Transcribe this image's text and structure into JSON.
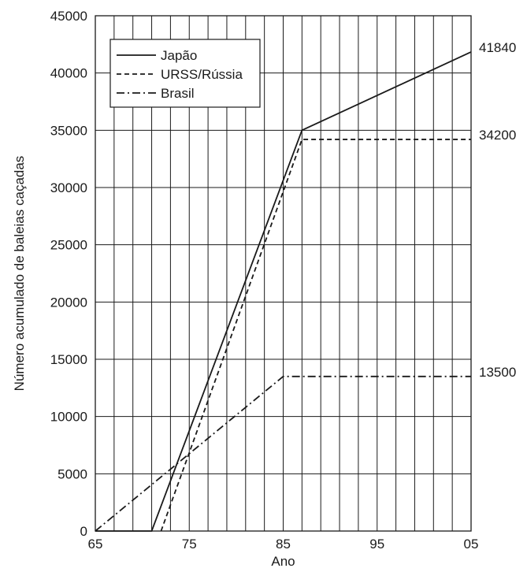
{
  "chart_data": {
    "type": "line",
    "xlabel": "Ano",
    "ylabel": "Número acumulado de baleias caçadas",
    "x_ticks": [
      {
        "value": 1965,
        "label": "65"
      },
      {
        "value": 1975,
        "label": "75"
      },
      {
        "value": 1985,
        "label": "85"
      },
      {
        "value": 1995,
        "label": "95"
      },
      {
        "value": 2005,
        "label": "05"
      }
    ],
    "y_ticks": [
      {
        "value": 0,
        "label": "0"
      },
      {
        "value": 5000,
        "label": "5000"
      },
      {
        "value": 10000,
        "label": "10000"
      },
      {
        "value": 15000,
        "label": "15000"
      },
      {
        "value": 20000,
        "label": "20000"
      },
      {
        "value": 25000,
        "label": "25000"
      },
      {
        "value": 30000,
        "label": "30000"
      },
      {
        "value": 35000,
        "label": "35000"
      },
      {
        "value": 40000,
        "label": "40000"
      },
      {
        "value": 45000,
        "label": "45000"
      }
    ],
    "xlim": [
      1965,
      2005
    ],
    "ylim": [
      0,
      45000
    ],
    "grid": {
      "vertical_every_years": 2,
      "horizontal_every": 5000
    },
    "legend": {
      "placement": "top-left"
    },
    "series": [
      {
        "name": "Japão",
        "style": "solid",
        "color": "#1a1a1a",
        "points": [
          {
            "x": 1965,
            "y": 0
          },
          {
            "x": 1971,
            "y": 0
          },
          {
            "x": 1987,
            "y": 35000
          },
          {
            "x": 2005,
            "y": 41840
          }
        ],
        "end_label": "41840"
      },
      {
        "name": "URSS/Rússia",
        "style": "dashed",
        "color": "#1a1a1a",
        "points": [
          {
            "x": 1972,
            "y": 0
          },
          {
            "x": 1987,
            "y": 34200
          },
          {
            "x": 2005,
            "y": 34200
          }
        ],
        "end_label": "34200"
      },
      {
        "name": "Brasil",
        "style": "dashdot",
        "color": "#1a1a1a",
        "points": [
          {
            "x": 1965,
            "y": 0
          },
          {
            "x": 1985,
            "y": 13500
          },
          {
            "x": 2005,
            "y": 13500
          }
        ],
        "end_label": "13500"
      }
    ]
  }
}
